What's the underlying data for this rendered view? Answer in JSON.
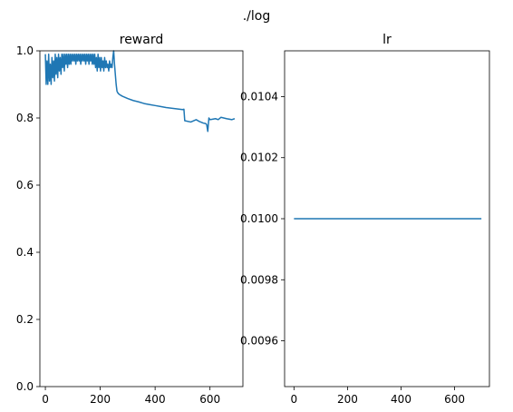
{
  "suptitle": "./log",
  "colors": {
    "line": "#1f77b4",
    "axes": "#000000",
    "background": "#ffffff"
  },
  "chart_data": [
    {
      "type": "line",
      "title": "reward",
      "xlabel": "",
      "ylabel": "",
      "xlim": [
        -20,
        720
      ],
      "ylim": [
        0.0,
        1.0
      ],
      "xticks": [
        0,
        200,
        400,
        600
      ],
      "xtick_labels": [
        "0",
        "200",
        "400",
        "600"
      ],
      "yticks": [
        0.0,
        0.2,
        0.4,
        0.6,
        0.8,
        1.0
      ],
      "ytick_labels": [
        "0.0",
        "0.2",
        "0.4",
        "0.6",
        "0.8",
        "1.0"
      ],
      "grid": false,
      "series": [
        {
          "x": [
            0,
            3,
            6,
            9,
            12,
            15,
            18,
            21,
            24,
            27,
            30,
            33,
            36,
            39,
            42,
            45,
            48,
            51,
            54,
            57,
            60,
            63,
            66,
            69,
            72,
            75,
            78,
            81,
            84,
            87,
            90,
            93,
            96,
            99,
            102,
            105,
            108,
            111,
            114,
            117,
            120,
            123,
            126,
            129,
            132,
            135,
            138,
            141,
            144,
            147,
            150,
            153,
            156,
            159,
            162,
            165,
            168,
            171,
            174,
            177,
            180,
            183,
            186,
            189,
            192,
            195,
            198,
            201,
            204,
            207,
            210,
            213,
            216,
            219,
            222,
            225,
            228,
            231,
            234,
            237,
            240,
            243,
            246,
            249,
            252,
            255,
            258,
            261,
            264,
            267,
            270,
            280,
            300,
            320,
            340,
            360,
            380,
            400,
            420,
            440,
            460,
            480,
            500,
            505,
            508,
            530,
            550,
            560,
            575,
            585,
            588,
            592,
            596,
            600,
            620,
            630,
            640,
            660,
            680,
            690
          ],
          "y": [
            0.99,
            0.9,
            0.97,
            0.9,
            0.99,
            0.91,
            0.96,
            0.9,
            0.98,
            0.92,
            0.97,
            0.91,
            0.99,
            0.93,
            0.98,
            0.92,
            0.99,
            0.94,
            0.98,
            0.93,
            0.99,
            0.95,
            0.99,
            0.94,
            0.99,
            0.96,
            0.99,
            0.95,
            0.99,
            0.96,
            0.99,
            0.96,
            0.99,
            0.97,
            0.99,
            0.97,
            0.99,
            0.96,
            0.99,
            0.97,
            0.99,
            0.97,
            0.99,
            0.96,
            0.99,
            0.97,
            0.99,
            0.97,
            0.99,
            0.96,
            0.99,
            0.97,
            0.99,
            0.96,
            0.99,
            0.97,
            0.99,
            0.96,
            0.99,
            0.96,
            0.99,
            0.95,
            0.98,
            0.94,
            0.99,
            0.95,
            0.98,
            0.94,
            0.98,
            0.95,
            0.97,
            0.94,
            0.98,
            0.95,
            0.97,
            0.95,
            0.96,
            0.94,
            0.97,
            0.95,
            0.96,
            0.95,
            0.98,
            1.0,
            0.96,
            0.93,
            0.9,
            0.88,
            0.875,
            0.872,
            0.87,
            0.865,
            0.858,
            0.852,
            0.848,
            0.843,
            0.84,
            0.837,
            0.834,
            0.831,
            0.829,
            0.827,
            0.825,
            0.826,
            0.792,
            0.788,
            0.795,
            0.79,
            0.785,
            0.783,
            0.78,
            0.76,
            0.8,
            0.795,
            0.798,
            0.795,
            0.802,
            0.798,
            0.795,
            0.798
          ]
        }
      ]
    },
    {
      "type": "line",
      "title": "lr",
      "xlabel": "",
      "ylabel": "",
      "xlim": [
        -35,
        730
      ],
      "ylim": [
        0.00945,
        0.01055
      ],
      "xticks": [
        0,
        200,
        400,
        600
      ],
      "xtick_labels": [
        "0",
        "200",
        "400",
        "600"
      ],
      "yticks": [
        0.0096,
        0.0098,
        0.01,
        0.0102,
        0.0104
      ],
      "ytick_labels": [
        "0.0096",
        "0.0098",
        "0.0100",
        "0.0102",
        "0.0104"
      ],
      "grid": false,
      "series": [
        {
          "x": [
            0,
            700
          ],
          "y": [
            0.01,
            0.01
          ]
        }
      ]
    }
  ]
}
